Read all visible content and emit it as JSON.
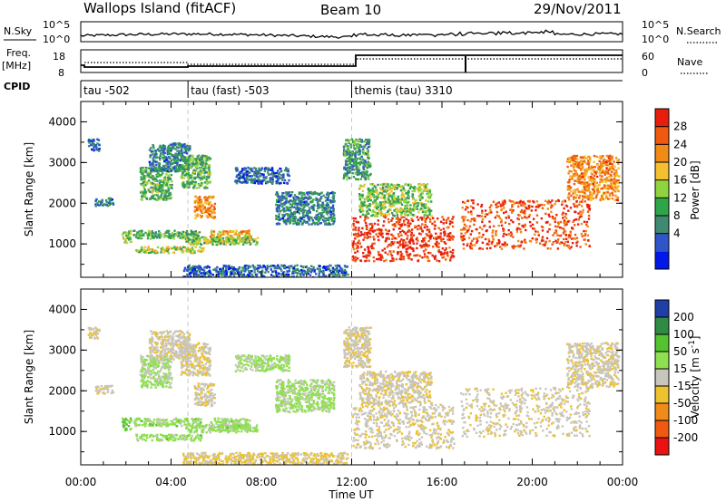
{
  "header": {
    "station": "Wallops Island (fitACF)",
    "beam": "Beam 10",
    "date": "29/Nov/2011"
  },
  "strip": {
    "nsky_label": "N.Sky",
    "nsky_ticks": [
      "10^5",
      "10^0"
    ],
    "nsearch_label": "N.Search",
    "nsearch_ticks": [
      "10^5",
      "10^0"
    ],
    "freq_label": "Freq.",
    "freq_unit": "[MHz]",
    "freq_ticks": [
      "18",
      "8"
    ],
    "nave_label": "Nave",
    "nave_ticks": [
      "60",
      "0"
    ],
    "cpid_label": "CPID"
  },
  "cpid_segments": [
    {
      "label": "tau -502",
      "start_h": 0.0
    },
    {
      "label": "tau (fast) -503",
      "start_h": 4.75
    },
    {
      "label": "themis (tau) 3310",
      "start_h": 12.0
    }
  ],
  "x_axis": {
    "label": "Time UT",
    "ticks": [
      "00:00",
      "04:00",
      "08:00",
      "12:00",
      "16:00",
      "20:00",
      "00:00"
    ],
    "range_h": [
      0,
      24
    ]
  },
  "panels": {
    "y_label": "Slant Range [km]",
    "y_ticks": [
      "4000",
      "3000",
      "2000",
      "1000"
    ],
    "y_range_km": [
      180,
      4500
    ]
  },
  "colorbars": {
    "power": {
      "label": "Power [dB]",
      "ticks": [
        "28",
        "24",
        "20",
        "16",
        "12",
        "8",
        "4"
      ],
      "colors": [
        "#0018e8",
        "#2f55c8",
        "#3f8a70",
        "#2fa54a",
        "#8fd43f",
        "#f5c030",
        "#f28a18",
        "#ef5a10",
        "#e81e0c"
      ]
    },
    "velocity": {
      "label": "Velocity [m s",
      "label_sup": "-1",
      "label_end": "]",
      "ticks": [
        "200",
        "100",
        "50",
        "15",
        "-15",
        "-50",
        "-100",
        "-200"
      ],
      "colors": [
        "#ea1212",
        "#f05a10",
        "#f08a18",
        "#eec22e",
        "#c8c6bc",
        "#8ee050",
        "#55c230",
        "#2f8a44",
        "#1e3ea8"
      ]
    }
  },
  "chart_data": {
    "type": "heatmap",
    "title": "Wallops Island (fitACF)",
    "xlabel": "Time UT",
    "ylabel": "Slant Range [km]",
    "x_range_hours": [
      0,
      24
    ],
    "y_range_km": [
      180,
      4500
    ],
    "panels": [
      "Power [dB]",
      "Velocity [m s-1]"
    ],
    "power_scale_dB": [
      0,
      30
    ],
    "velocity_scale": [
      -200,
      200
    ],
    "nsky_scale": [
      1,
      100000
    ],
    "freq_scale_MHz": [
      8,
      18
    ],
    "nave_scale": [
      0,
      60
    ],
    "scatter_regions": [
      {
        "t": [
          0.3,
          0.8
        ],
        "r": [
          3300,
          3600
        ],
        "power": 6,
        "velocity": -10
      },
      {
        "t": [
          0.6,
          1.4
        ],
        "r": [
          1950,
          2150
        ],
        "power": 8,
        "velocity": -10
      },
      {
        "t": [
          1.8,
          2.2
        ],
        "r": [
          1050,
          1350
        ],
        "power": 14,
        "velocity": 70
      },
      {
        "t": [
          2.3,
          5.3
        ],
        "r": [
          1150,
          1350
        ],
        "power": 12,
        "velocity": 40
      },
      {
        "t": [
          2.4,
          5.4
        ],
        "r": [
          800,
          950
        ],
        "power": 16,
        "velocity": 40
      },
      {
        "t": [
          2.6,
          4.0
        ],
        "r": [
          2100,
          2900
        ],
        "power": 12,
        "velocity": 30
      },
      {
        "t": [
          3.0,
          4.8
        ],
        "r": [
          2800,
          3500
        ],
        "power": 8,
        "velocity": -10
      },
      {
        "t": [
          4.4,
          5.7
        ],
        "r": [
          2400,
          3200
        ],
        "power": 12,
        "velocity": -10
      },
      {
        "t": [
          5.0,
          5.9
        ],
        "r": [
          1650,
          2200
        ],
        "power": 22,
        "velocity": -10
      },
      {
        "t": [
          5.7,
          7.5
        ],
        "r": [
          1050,
          1350
        ],
        "power": 20,
        "velocity": 40
      },
      {
        "t": [
          4.6,
          7.8
        ],
        "r": [
          1000,
          1200
        ],
        "power": 14,
        "velocity": 40
      },
      {
        "t": [
          4.5,
          11.8
        ],
        "r": [
          200,
          500
        ],
        "power": 6,
        "velocity": -30
      },
      {
        "t": [
          6.8,
          9.2
        ],
        "r": [
          2500,
          2900
        ],
        "power": 6,
        "velocity": 30
      },
      {
        "t": [
          8.6,
          11.2
        ],
        "r": [
          1500,
          2300
        ],
        "power": 8,
        "velocity": 30
      },
      {
        "t": [
          11.6,
          12.8
        ],
        "r": [
          2600,
          3600
        ],
        "power": 10,
        "velocity": -10
      },
      {
        "t": [
          12.3,
          15.5
        ],
        "r": [
          1700,
          2500
        ],
        "power": 14,
        "velocity": -10
      },
      {
        "t": [
          12.0,
          16.5
        ],
        "r": [
          600,
          1700
        ],
        "power": 28,
        "velocity": -10
      },
      {
        "t": [
          16.8,
          22.5
        ],
        "r": [
          900,
          2100
        ],
        "power": 26,
        "velocity": -10
      },
      {
        "t": [
          21.5,
          23.8
        ],
        "r": [
          2100,
          3200
        ],
        "power": 22,
        "velocity": -10
      }
    ]
  }
}
